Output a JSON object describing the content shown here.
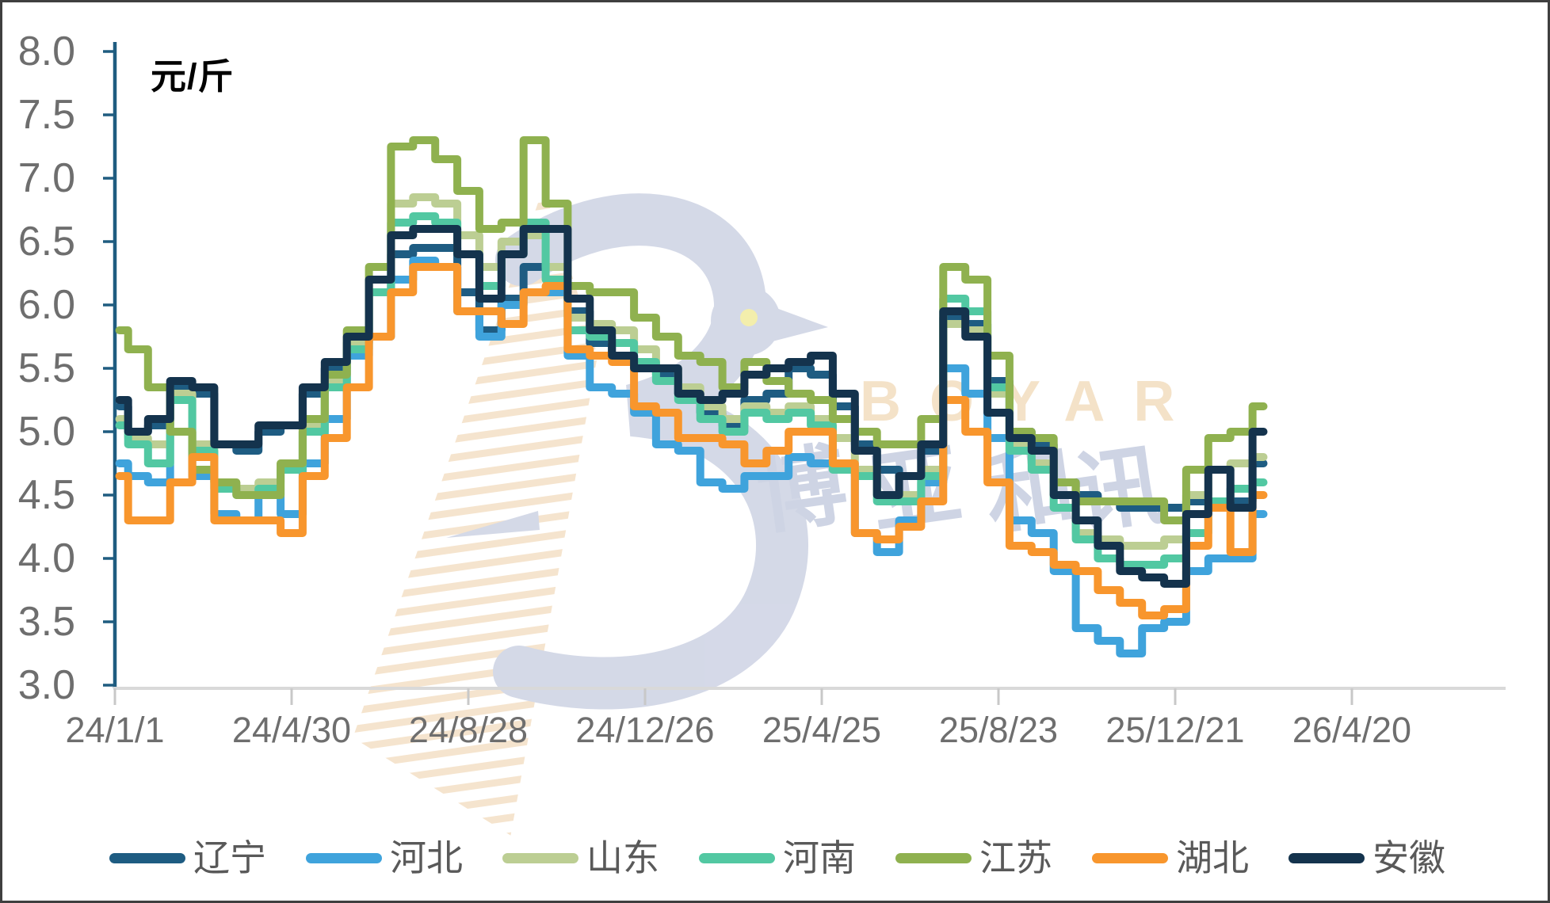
{
  "frame": {
    "border_color": "#3F3F3F",
    "background": "#FFFFFF"
  },
  "chart_data": {
    "type": "line",
    "title": "",
    "unit": "元/斤",
    "ylabel": "元/斤",
    "xlabel": "",
    "ylim": [
      3.0,
      8.0
    ],
    "ytick_step": 0.5,
    "ytick_format": "one_decimal",
    "grid": "off",
    "legend_position": "bottom",
    "x_ticks": [
      {
        "day": 0,
        "label": "24/1/1"
      },
      {
        "day": 120,
        "label": "24/4/30"
      },
      {
        "day": 240,
        "label": "24/8/28"
      },
      {
        "day": 360,
        "label": "24/12/26"
      },
      {
        "day": 480,
        "label": "25/4/25"
      },
      {
        "day": 600,
        "label": "25/8/23"
      },
      {
        "day": 720,
        "label": "25/12/21"
      },
      {
        "day": 840,
        "label": "26/4/20"
      }
    ],
    "sample_days": [
      3,
      15,
      30,
      45,
      60,
      75,
      90,
      105,
      120,
      135,
      150,
      165,
      180,
      195,
      210,
      225,
      240,
      255,
      270,
      285,
      300,
      315,
      330,
      345,
      360,
      375,
      390,
      405,
      420,
      435,
      450,
      465,
      480,
      495,
      510,
      525,
      540,
      555,
      570,
      585,
      600,
      615,
      630,
      645,
      660,
      675,
      690,
      705,
      720,
      735,
      750,
      765,
      780
    ],
    "series": [
      {
        "name": "辽宁",
        "color": "#1E5C82",
        "values": [
          5.2,
          5.0,
          5.05,
          5.35,
          5.3,
          4.9,
          4.85,
          5.0,
          5.05,
          5.3,
          5.5,
          5.7,
          6.1,
          6.4,
          6.45,
          6.45,
          6.1,
          5.8,
          6.05,
          6.3,
          6.3,
          5.95,
          5.7,
          5.6,
          5.5,
          5.45,
          5.3,
          5.15,
          5.05,
          5.25,
          5.3,
          5.5,
          5.45,
          5.2,
          4.9,
          4.7,
          4.65,
          4.85,
          5.9,
          5.85,
          5.4,
          5.0,
          4.9,
          4.6,
          4.5,
          4.45,
          4.4,
          4.4,
          4.4,
          4.45,
          4.45,
          4.45,
          4.75
        ]
      },
      {
        "name": "河北",
        "color": "#3FA3DC",
        "values": [
          4.75,
          4.65,
          4.6,
          5.0,
          4.65,
          4.35,
          4.3,
          4.55,
          4.35,
          4.75,
          5.1,
          5.6,
          5.75,
          6.2,
          6.35,
          6.3,
          5.95,
          5.75,
          6.0,
          6.1,
          6.1,
          5.6,
          5.35,
          5.3,
          5.15,
          4.9,
          4.85,
          4.6,
          4.55,
          4.65,
          4.65,
          4.8,
          4.75,
          4.75,
          4.2,
          4.05,
          4.3,
          4.6,
          5.5,
          5.3,
          4.95,
          4.3,
          4.2,
          3.9,
          3.45,
          3.35,
          3.25,
          3.45,
          3.5,
          3.9,
          4.0,
          4.0,
          4.35
        ]
      },
      {
        "name": "山东",
        "color": "#BCCE93",
        "values": [
          5.1,
          4.95,
          4.9,
          5.3,
          4.9,
          4.6,
          4.55,
          4.6,
          4.75,
          5.05,
          5.4,
          5.7,
          6.2,
          6.8,
          6.85,
          6.8,
          6.55,
          6.3,
          6.5,
          6.55,
          6.3,
          5.9,
          5.85,
          5.8,
          5.65,
          5.5,
          5.35,
          5.2,
          5.1,
          5.2,
          5.15,
          5.2,
          5.1,
          4.95,
          4.7,
          4.5,
          4.5,
          4.7,
          5.85,
          5.8,
          5.3,
          4.9,
          4.75,
          4.5,
          4.2,
          4.15,
          4.1,
          4.1,
          4.15,
          4.5,
          4.7,
          4.75,
          4.8
        ]
      },
      {
        "name": "河南",
        "color": "#52C8A2",
        "values": [
          5.05,
          4.9,
          4.75,
          5.25,
          4.85,
          4.55,
          4.5,
          4.55,
          4.7,
          5.0,
          5.35,
          5.65,
          6.1,
          6.65,
          6.7,
          6.65,
          6.4,
          6.15,
          6.4,
          6.65,
          6.2,
          5.8,
          5.75,
          5.7,
          5.55,
          5.4,
          5.25,
          5.1,
          5.0,
          5.15,
          5.1,
          5.15,
          5.05,
          4.7,
          4.65,
          4.45,
          4.45,
          4.65,
          6.05,
          5.95,
          5.35,
          4.85,
          4.7,
          4.4,
          4.15,
          4.0,
          3.95,
          3.95,
          4.0,
          4.2,
          4.45,
          4.55,
          4.6
        ]
      },
      {
        "name": "江苏",
        "color": "#8FB14F",
        "values": [
          5.8,
          5.65,
          5.35,
          5.0,
          4.7,
          4.6,
          4.5,
          4.5,
          4.75,
          5.1,
          5.45,
          5.8,
          6.3,
          7.25,
          7.3,
          7.15,
          6.9,
          6.6,
          6.65,
          7.3,
          6.8,
          6.15,
          6.1,
          6.1,
          5.9,
          5.75,
          5.6,
          5.55,
          5.35,
          5.55,
          5.4,
          5.3,
          5.25,
          5.1,
          5.0,
          4.9,
          4.9,
          5.1,
          6.3,
          6.2,
          5.6,
          5.0,
          4.95,
          4.6,
          4.45,
          4.45,
          4.45,
          4.45,
          4.3,
          4.7,
          4.95,
          5.0,
          5.2
        ]
      },
      {
        "name": "湖北",
        "color": "#F8962D",
        "values": [
          4.65,
          4.3,
          4.3,
          4.6,
          4.8,
          4.3,
          4.3,
          4.3,
          4.2,
          4.65,
          4.95,
          5.35,
          5.75,
          6.1,
          6.3,
          6.3,
          5.95,
          5.95,
          5.85,
          6.1,
          6.15,
          5.65,
          5.6,
          5.55,
          5.2,
          5.15,
          4.95,
          4.95,
          4.9,
          4.75,
          4.85,
          5.0,
          5.0,
          4.75,
          4.2,
          4.15,
          4.25,
          4.45,
          5.25,
          5.0,
          4.6,
          4.1,
          4.05,
          3.95,
          3.9,
          3.75,
          3.65,
          3.55,
          3.6,
          4.1,
          4.4,
          4.05,
          4.5
        ]
      },
      {
        "name": "安徽",
        "color": "#14334D",
        "values": [
          5.25,
          5.0,
          5.1,
          5.4,
          5.35,
          4.9,
          4.9,
          5.05,
          5.05,
          5.35,
          5.55,
          5.75,
          6.2,
          6.55,
          6.6,
          6.6,
          6.4,
          6.05,
          6.4,
          6.6,
          6.6,
          6.05,
          5.8,
          5.6,
          5.5,
          5.5,
          5.3,
          5.25,
          5.3,
          5.45,
          5.5,
          5.55,
          5.6,
          5.3,
          4.85,
          4.5,
          4.65,
          4.9,
          5.95,
          5.75,
          5.15,
          4.95,
          4.85,
          4.5,
          4.3,
          4.1,
          3.9,
          3.85,
          3.8,
          4.35,
          4.7,
          4.4,
          5.0
        ]
      }
    ]
  },
  "style": {
    "yaxis_color": "#1F5C80",
    "xaxis_color": "#D9D9D9",
    "xtick_color": "#C8C8C8",
    "tick_label_color": "#6E6E6E",
    "legend_text_color": "#595959",
    "line_width": 10
  },
  "watermark": {
    "latin": "BOYAR",
    "latin_color": "#F3DFC3",
    "cn": "博亚和讯",
    "cn_color": "#C9D0E2",
    "logo_color": "#D0D5E5",
    "logo_eye_color": "#F2EDA4",
    "stripe_color": "#F5E2C9"
  }
}
